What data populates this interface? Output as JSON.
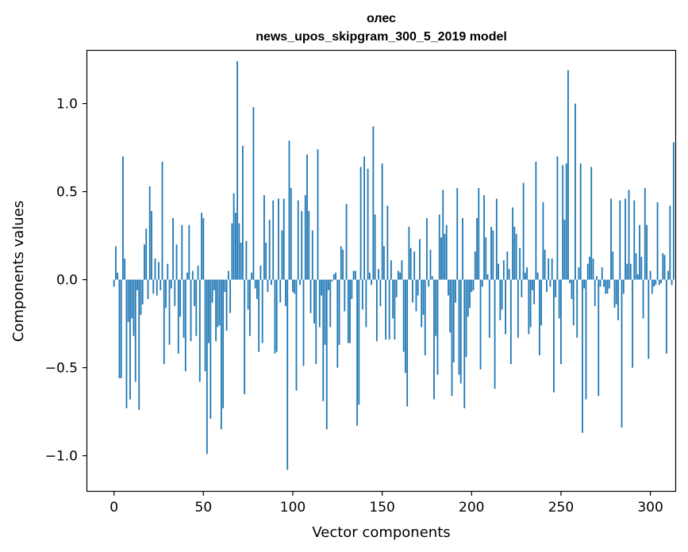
{
  "chart_data": {
    "type": "bar",
    "title": "олес",
    "subtitle": "news_upos_skipgram_300_5_2019 model",
    "xlabel": "Vector components",
    "ylabel": "Components values",
    "xlim": [
      -14.95,
      313.95
    ],
    "ylim": [
      -1.2,
      1.3
    ],
    "xticks": [
      0,
      50,
      100,
      150,
      200,
      250,
      300
    ],
    "xtick_labels": [
      "0",
      "50",
      "100",
      "150",
      "200",
      "250",
      "300"
    ],
    "yticks": [
      -1.0,
      -0.5,
      0.0,
      0.5,
      1.0
    ],
    "ytick_labels": [
      "−1.0",
      "−0.5",
      "0.0",
      "0.5",
      "1.0"
    ],
    "bar_color": "#1f77b4",
    "grid": false,
    "values": [
      -0.04,
      0.19,
      0.04,
      -0.56,
      -0.56,
      0.7,
      0.12,
      -0.73,
      -0.24,
      -0.68,
      -0.22,
      -0.32,
      -0.58,
      -0.06,
      -0.74,
      -0.2,
      -0.14,
      0.2,
      0.29,
      -0.11,
      0.53,
      0.39,
      -0.08,
      0.12,
      -0.09,
      0.1,
      -0.06,
      0.67,
      -0.48,
      -0.16,
      0.09,
      -0.37,
      -0.05,
      0.35,
      -0.15,
      0.2,
      -0.42,
      -0.21,
      0.31,
      -0.33,
      -0.52,
      0.04,
      0.31,
      -0.35,
      0.05,
      -0.15,
      -0.32,
      0.08,
      -0.58,
      0.38,
      0.35,
      -0.52,
      -0.99,
      -0.36,
      -0.79,
      -0.13,
      -0.06,
      -0.35,
      -0.27,
      -0.26,
      -0.85,
      -0.73,
      -0.07,
      -0.29,
      0.05,
      -0.19,
      0.32,
      0.49,
      0.38,
      1.24,
      0.32,
      0.21,
      0.76,
      -0.65,
      0.22,
      -0.17,
      -0.32,
      0.04,
      0.98,
      -0.05,
      -0.11,
      -0.41,
      0.08,
      -0.36,
      0.48,
      0.21,
      -0.07,
      0.34,
      -0.03,
      0.45,
      -0.42,
      -0.41,
      0.46,
      -0.13,
      0.28,
      0.46,
      -0.15,
      -1.08,
      0.79,
      0.52,
      -0.07,
      -0.08,
      -0.63,
      0.45,
      -0.03,
      0.39,
      -0.49,
      0.48,
      0.71,
      0.39,
      -0.19,
      0.28,
      -0.25,
      -0.48,
      0.74,
      -0.27,
      -0.09,
      -0.69,
      -0.37,
      -0.85,
      -0.06,
      -0.27,
      -0.01,
      0.03,
      0.04,
      -0.5,
      -0.37,
      0.19,
      0.17,
      -0.18,
      0.43,
      -0.36,
      -0.36,
      -0.11,
      0.05,
      0.05,
      -0.83,
      -0.71,
      0.64,
      -0.17,
      0.7,
      -0.27,
      0.63,
      0.04,
      -0.03,
      0.87,
      0.37,
      -0.35,
      0.06,
      -0.15,
      0.66,
      0.19,
      -0.34,
      0.42,
      -0.34,
      0.11,
      -0.22,
      -0.34,
      -0.1,
      0.05,
      0.04,
      0.11,
      -0.41,
      -0.53,
      -0.72,
      0.3,
      0.18,
      -0.13,
      0.16,
      -0.18,
      -0.09,
      0.23,
      -0.27,
      -0.2,
      -0.43,
      0.35,
      -0.04,
      0.17,
      0.02,
      -0.68,
      -0.32,
      -0.54,
      0.37,
      0.24,
      0.51,
      0.26,
      0.31,
      -0.09,
      -0.3,
      -0.66,
      -0.47,
      -0.13,
      0.52,
      -0.54,
      -0.59,
      0.35,
      -0.73,
      -0.44,
      -0.21,
      -0.16,
      -0.07,
      -0.06,
      0.16,
      0.35,
      0.52,
      -0.51,
      -0.04,
      0.48,
      0.24,
      0.03,
      -0.33,
      0.3,
      0.28,
      -0.62,
      0.46,
      0.09,
      -0.23,
      -0.17,
      0.11,
      -0.31,
      0.16,
      0.06,
      -0.48,
      0.41,
      0.3,
      0.26,
      -0.33,
      0.18,
      -0.1,
      0.55,
      0.04,
      0.07,
      -0.31,
      -0.27,
      -0.06,
      -0.14,
      0.67,
      0.04,
      -0.43,
      -0.26,
      0.44,
      0.17,
      -0.07,
      0.12,
      -0.04,
      0.12,
      -0.64,
      -0.1,
      0.7,
      -0.22,
      -0.48,
      0.65,
      0.34,
      0.66,
      1.19,
      -0.02,
      -0.11,
      -0.26,
      1.0,
      -0.33,
      0.07,
      0.66,
      -0.87,
      -0.05,
      -0.68,
      0.09,
      0.13,
      0.64,
      0.12,
      -0.15,
      0.02,
      -0.66,
      -0.04,
      0.07,
      -0.04,
      -0.08,
      -0.08,
      -0.05,
      0.46,
      0.16,
      -0.16,
      -0.14,
      -0.23,
      0.45,
      -0.84,
      -0.08,
      0.46,
      0.09,
      0.51,
      0.09,
      -0.5,
      0.45,
      0.15,
      0.03,
      0.31,
      0.13,
      -0.22,
      0.52,
      0.31,
      -0.45,
      0.05,
      -0.08,
      -0.04,
      -0.03,
      0.44,
      -0.03,
      -0.02,
      0.15,
      0.14,
      -0.42,
      0.05,
      0.42,
      -0.03,
      0.78
    ]
  }
}
